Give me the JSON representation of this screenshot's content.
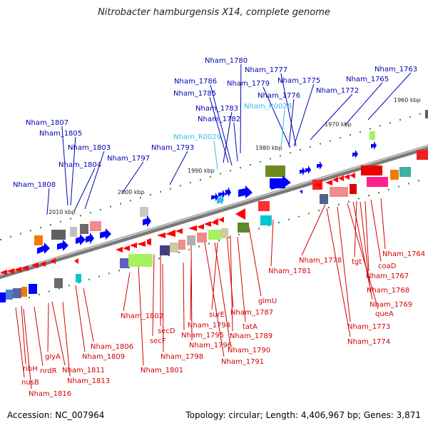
{
  "title": "Nitrobacter hamburgensis X14, complete genome",
  "accession": "Accession: NC_007964",
  "topology": "Topology: circular; Length: 4,406,967 bp; Genes: 3,871",
  "colors": {
    "top_label": "#0000b4",
    "top_rna_label": "#33bbee",
    "bottom_label": "#d40000",
    "backbone": "#8c8c8c",
    "tick": "#2e8b2e"
  },
  "kbp_labels": [
    "1960 kbp",
    "1970 kbp",
    "1980 kbp",
    "1990 kbp",
    "2000 kbp",
    "2010 kbp"
  ],
  "top_labels": [
    {
      "text": "Nham_1780",
      "kind": "gene"
    },
    {
      "text": "Nham_1777",
      "kind": "gene"
    },
    {
      "text": "Nham_1763",
      "kind": "gene"
    },
    {
      "text": "Nham_1786",
      "kind": "gene"
    },
    {
      "text": "Nham_1779",
      "kind": "gene"
    },
    {
      "text": "Nham_1775",
      "kind": "gene"
    },
    {
      "text": "Nham_1765",
      "kind": "gene"
    },
    {
      "text": "Nham_1785",
      "kind": "gene"
    },
    {
      "text": "Nham_1776",
      "kind": "gene"
    },
    {
      "text": "Nham_1772",
      "kind": "gene"
    },
    {
      "text": "Nham_R0028",
      "kind": "rna"
    },
    {
      "text": "Nham_1783",
      "kind": "gene"
    },
    {
      "text": "Nham_1782",
      "kind": "gene"
    },
    {
      "text": "Nham_1807",
      "kind": "gene"
    },
    {
      "text": "Nham_1805",
      "kind": "gene"
    },
    {
      "text": "Nham_R0029",
      "kind": "rna"
    },
    {
      "text": "Nham_1803",
      "kind": "gene"
    },
    {
      "text": "Nham_1793",
      "kind": "gene"
    },
    {
      "text": "Nham_1797",
      "kind": "gene"
    },
    {
      "text": "Nham_1804",
      "kind": "gene"
    },
    {
      "text": "Nham_1808",
      "kind": "gene"
    }
  ],
  "bottom_labels": [
    "Nham_1764",
    "coaD",
    "tgt",
    "Nham_1778",
    "Nham_1767",
    "Nham_1781",
    "Nham_1768",
    "Nham_1769",
    "glmU",
    "queA",
    "Nham_1787",
    "Nham_1802",
    "Nham_1794",
    "surE",
    "Nham_1773",
    "secD",
    "tatA",
    "Nham_1795",
    "Nham_1789",
    "secF",
    "Nham_1806",
    "Nham_1796",
    "Nham_1774",
    "Nham_1790",
    "Nham_1798",
    "Nham_1809",
    "Nham_1791",
    "glyA",
    "Nham_1811",
    "Nham_1801",
    "ribH",
    "nrdR",
    "Nham_1813",
    "nusB",
    "Nham_1816"
  ]
}
